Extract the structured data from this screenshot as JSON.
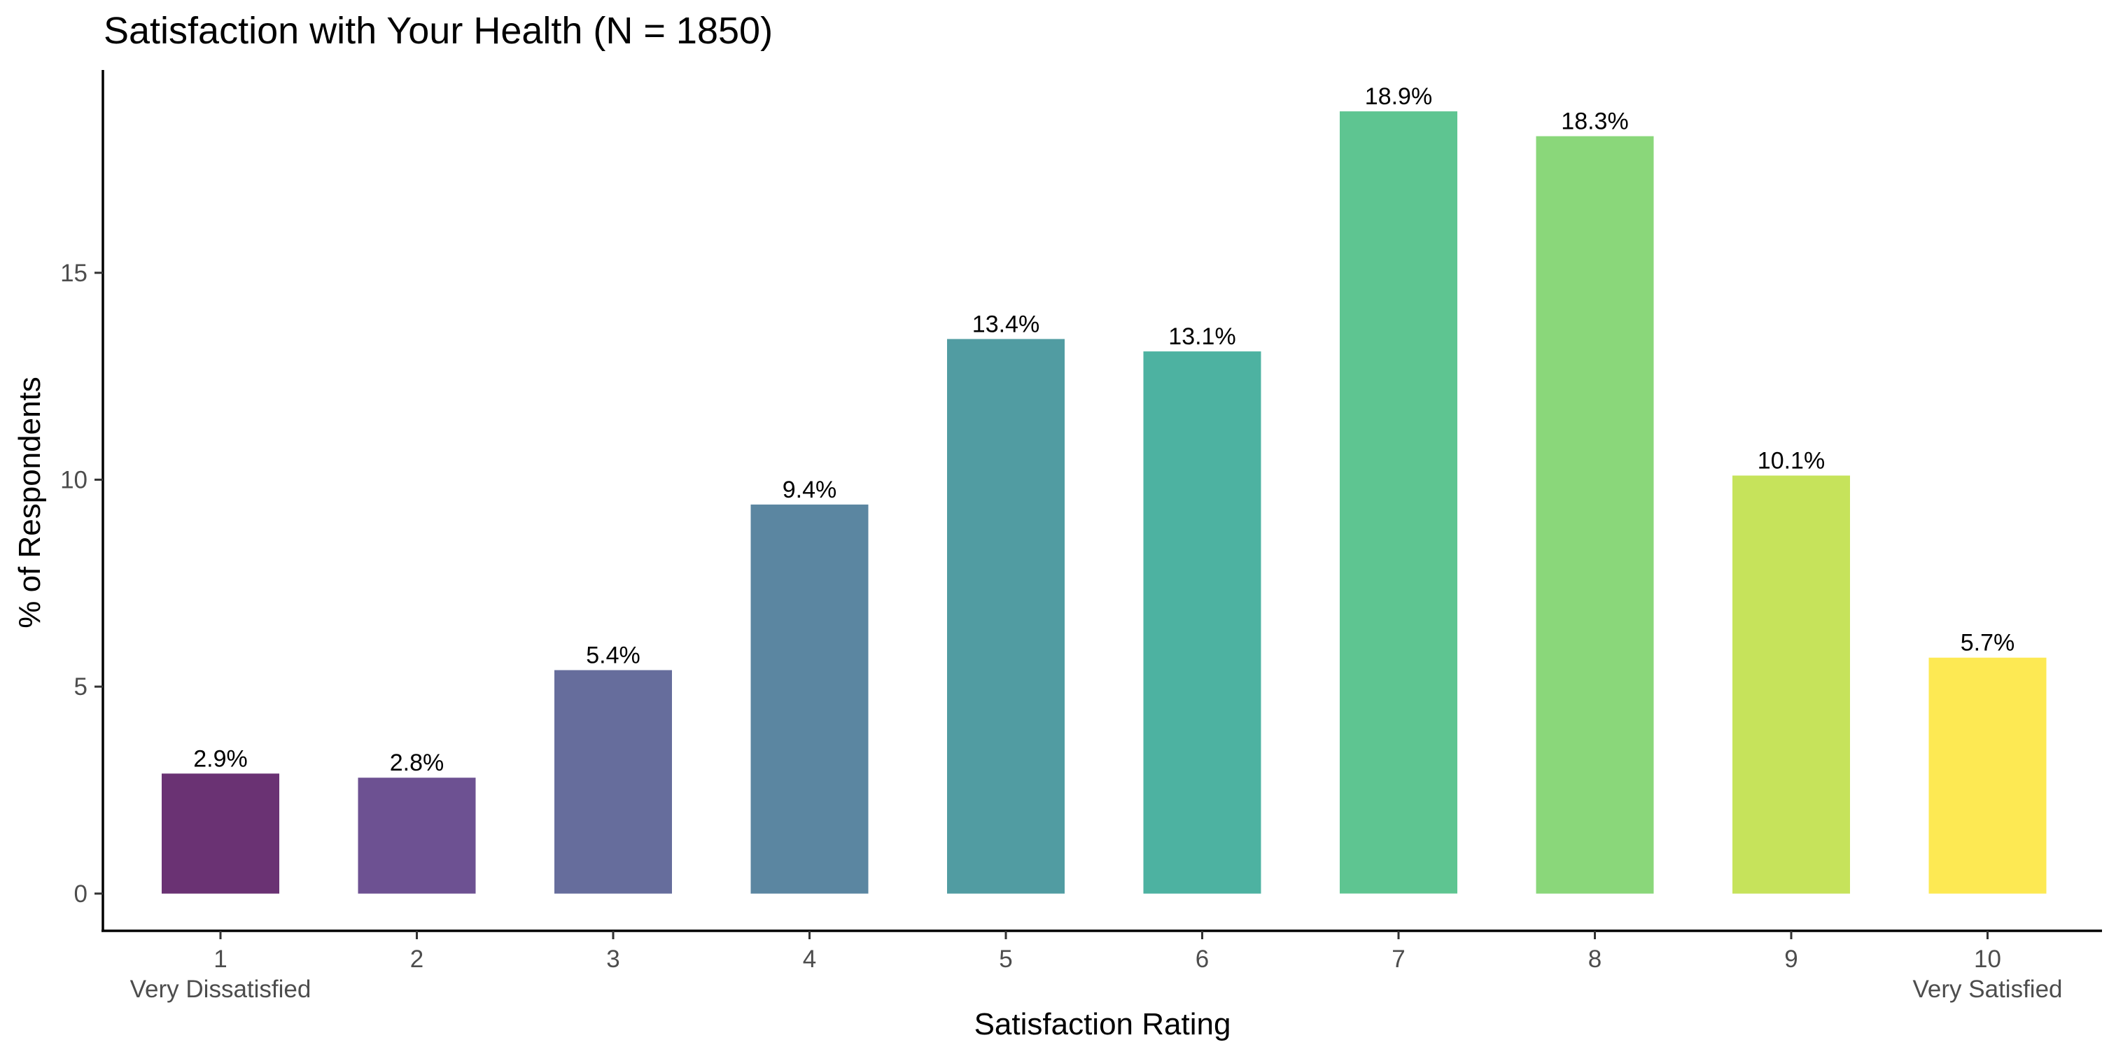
{
  "chart_data": {
    "type": "bar",
    "title": "Satisfaction with Your Health (N = 1850)",
    "xlabel": "Satisfaction Rating",
    "ylabel": "% of Respondents",
    "categories": [
      "1",
      "2",
      "3",
      "4",
      "5",
      "6",
      "7",
      "8",
      "9",
      "10"
    ],
    "values": [
      2.9,
      2.8,
      5.4,
      9.4,
      13.4,
      13.1,
      18.9,
      18.3,
      10.1,
      5.7
    ],
    "data_labels": [
      "2.9%",
      "2.8%",
      "5.4%",
      "9.4%",
      "13.4%",
      "13.1%",
      "18.9%",
      "18.3%",
      "10.1%",
      "5.7%"
    ],
    "colors": [
      "#6a3273",
      "#6d5192",
      "#666d9c",
      "#5b86a1",
      "#519ca2",
      "#4db2a1",
      "#5ec591",
      "#8ad77a",
      "#c6e35b",
      "#fde953"
    ],
    "category_sublabels": {
      "first": "Very Dissatisfied",
      "last": "Very Satisfied"
    },
    "y_ticks": [
      0,
      5,
      10,
      15
    ],
    "ylim": [
      -0.9,
      19.9
    ],
    "grid": false,
    "legend": "none"
  }
}
